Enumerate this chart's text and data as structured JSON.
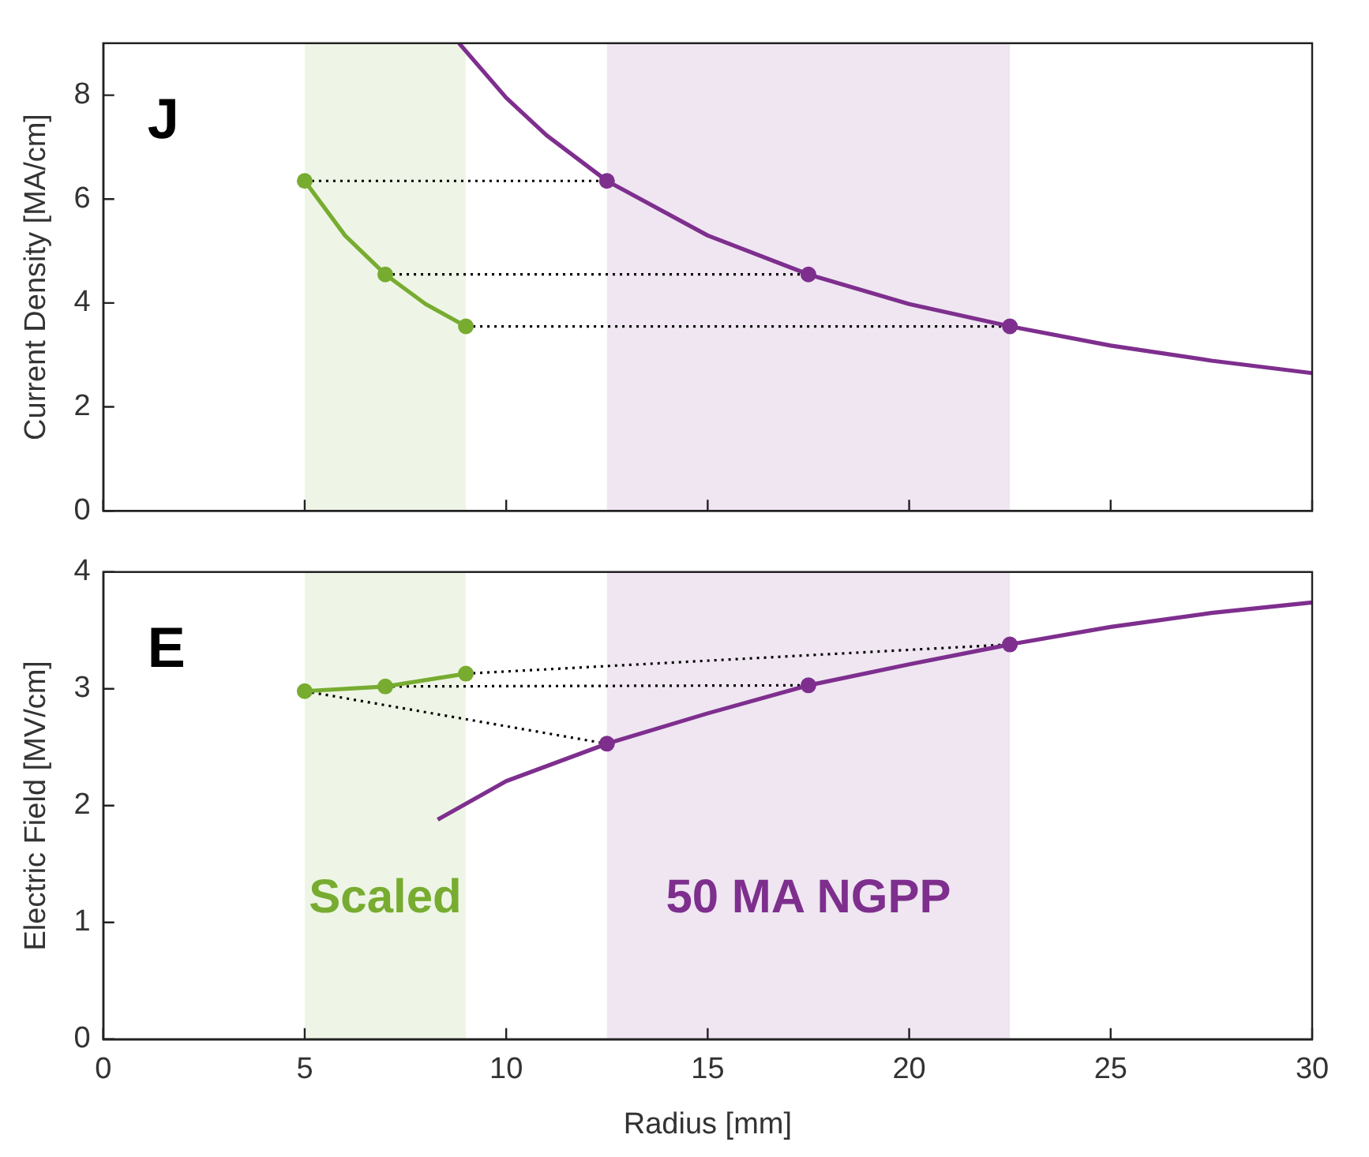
{
  "chart_data": [
    {
      "type": "line",
      "ylabel": "Current Density [MA/cm]",
      "annotations": [
        "J"
      ],
      "xlim": [
        0,
        30
      ],
      "xticks": [
        0,
        5,
        10,
        15,
        20,
        25,
        30
      ],
      "ylim": [
        0,
        9
      ],
      "yticks": [
        0,
        2,
        4,
        6,
        8
      ],
      "tick_labels": "y",
      "grid": false,
      "legend": false,
      "bands": [
        {
          "axis": "x",
          "from": 5,
          "to": 9,
          "color": "#77ac30"
        },
        {
          "axis": "x",
          "from": 12.5,
          "to": 22.5,
          "color": "#7e2f8e"
        }
      ],
      "series": [
        {
          "type": "line",
          "color": "#000000",
          "line_style": "dotted",
          "marker": "none",
          "x": [
            5,
            12.5
          ],
          "values": [
            6.35,
            6.35
          ]
        },
        {
          "type": "line",
          "color": "#000000",
          "line_style": "dotted",
          "marker": "none",
          "x": [
            7,
            17.5
          ],
          "values": [
            4.55,
            4.55
          ]
        },
        {
          "type": "line",
          "color": "#000000",
          "line_style": "dotted",
          "marker": "none",
          "x": [
            9,
            22.5
          ],
          "values": [
            3.55,
            3.55
          ]
        },
        {
          "type": "line",
          "color": "#77ac30",
          "line_style": "solid",
          "marker": "none",
          "x": [
            5,
            6,
            7,
            8,
            9
          ],
          "values": [
            6.35,
            5.3,
            4.55,
            3.98,
            3.55
          ]
        },
        {
          "type": "scatter",
          "color": "#77ac30",
          "marker": "circle",
          "x": [
            5,
            7,
            9
          ],
          "values": [
            6.35,
            4.55,
            3.55
          ]
        },
        {
          "type": "line",
          "color": "#7e2f8e",
          "line_style": "solid",
          "marker": "none",
          "x": [
            8.83,
            10,
            11,
            12.5,
            15,
            17.5,
            20,
            22.5,
            25,
            27.5,
            30
          ],
          "values": [
            9,
            7.95,
            7.23,
            6.35,
            5.3,
            4.55,
            3.98,
            3.55,
            3.18,
            2.89,
            2.65
          ]
        },
        {
          "type": "scatter",
          "color": "#7e2f8e",
          "marker": "circle",
          "x": [
            12.5,
            17.5,
            22.5
          ],
          "values": [
            6.35,
            4.55,
            3.55
          ]
        }
      ]
    },
    {
      "type": "line",
      "xlabel": "Radius [mm]",
      "ylabel": "Electric Field [MV/cm]",
      "annotations": [
        "E"
      ],
      "xlim": [
        0,
        30
      ],
      "xticks": [
        0,
        5,
        10,
        15,
        20,
        25,
        30
      ],
      "ylim": [
        0,
        4
      ],
      "yticks": [
        0,
        1,
        2,
        3,
        4
      ],
      "grid": false,
      "legend": false,
      "bands": [
        {
          "axis": "x",
          "from": 5,
          "to": 9,
          "color": "#77ac30",
          "label": "Scaled"
        },
        {
          "axis": "x",
          "from": 12.5,
          "to": 22.5,
          "color": "#7e2f8e",
          "label": "50 MA NGPP"
        }
      ],
      "series": [
        {
          "type": "line",
          "color": "#000000",
          "line_style": "dotted",
          "marker": "none",
          "x": [
            5,
            12.5
          ],
          "values": [
            2.98,
            2.53
          ]
        },
        {
          "type": "line",
          "color": "#000000",
          "line_style": "dotted",
          "marker": "none",
          "x": [
            7,
            17.5
          ],
          "values": [
            3.02,
            3.03
          ]
        },
        {
          "type": "line",
          "color": "#000000",
          "line_style": "dotted",
          "marker": "none",
          "x": [
            9,
            22.5
          ],
          "values": [
            3.13,
            3.38
          ]
        },
        {
          "type": "line",
          "color": "#77ac30",
          "line_style": "solid",
          "marker": "circle",
          "x": [
            5,
            7,
            9
          ],
          "values": [
            2.98,
            3.02,
            3.13
          ]
        },
        {
          "type": "line",
          "color": "#7e2f8e",
          "line_style": "solid",
          "marker": "none",
          "x": [
            8.3,
            10,
            12.5,
            15,
            17.5,
            20,
            22.5,
            25,
            27.5,
            30
          ],
          "values": [
            1.88,
            2.21,
            2.53,
            2.79,
            3.03,
            3.21,
            3.38,
            3.53,
            3.65,
            3.74
          ]
        },
        {
          "type": "scatter",
          "color": "#7e2f8e",
          "marker": "circle",
          "x": [
            12.5,
            17.5,
            22.5
          ],
          "values": [
            2.53,
            3.03,
            3.38
          ]
        }
      ]
    }
  ]
}
